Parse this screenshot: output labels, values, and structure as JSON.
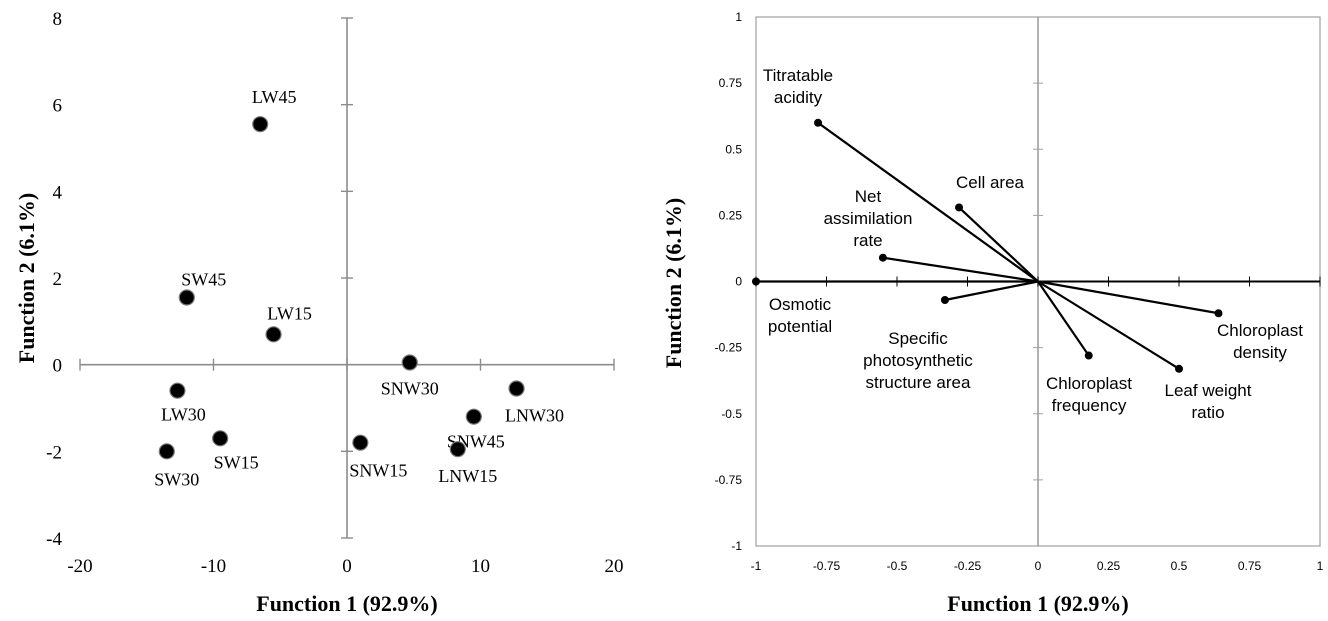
{
  "chart_data": [
    {
      "type": "scatter",
      "xlabel": "Function 1 (92.9%)",
      "ylabel": "Function 2 (6.1%)",
      "xlim": [
        -20,
        20
      ],
      "ylim": [
        -4,
        8
      ],
      "xticks": [
        "-20",
        "-10",
        "0",
        "10",
        "20"
      ],
      "yticks": [
        "-4",
        "-2",
        "0",
        "2",
        "4",
        "6",
        "8"
      ],
      "grid": false,
      "points": [
        {
          "label": "LW45",
          "x": -6.5,
          "y": 5.55
        },
        {
          "label": "SW45",
          "x": -12.0,
          "y": 1.55
        },
        {
          "label": "LW15",
          "x": -5.5,
          "y": 0.7
        },
        {
          "label": "LW30",
          "x": -12.7,
          "y": -0.6
        },
        {
          "label": "SW30",
          "x": -13.5,
          "y": -2.0
        },
        {
          "label": "SW15",
          "x": -9.5,
          "y": -1.7
        },
        {
          "label": "SNW15",
          "x": 1.0,
          "y": -1.8
        },
        {
          "label": "SNW30",
          "x": 4.7,
          "y": 0.05
        },
        {
          "label": "SNW45",
          "x": 9.5,
          "y": -1.2
        },
        {
          "label": "LNW15",
          "x": 8.3,
          "y": -1.95
        },
        {
          "label": "LNW30",
          "x": 12.7,
          "y": -0.55
        }
      ]
    },
    {
      "type": "vector",
      "xlabel": "Function 1 (92.9%)",
      "ylabel": "Function 2 (6.1%)",
      "xlim": [
        -1,
        1
      ],
      "ylim": [
        -1,
        1
      ],
      "xticks": [
        "-1",
        "-0.75",
        "-0.5",
        "-0.25",
        "0",
        "0.25",
        "0.5",
        "0.75",
        "1"
      ],
      "yticks": [
        "-1",
        "-0.75",
        "-0.5",
        "-0.25",
        "0",
        "0.25",
        "0.5",
        "0.75",
        "1"
      ],
      "grid": false,
      "vectors": [
        {
          "label": [
            "Titratable",
            "acidity"
          ],
          "x": -0.78,
          "y": 0.6
        },
        {
          "label": [
            "Cell area"
          ],
          "x": -0.28,
          "y": 0.28
        },
        {
          "label": [
            "Net",
            "assimilation",
            "rate"
          ],
          "x": -0.55,
          "y": 0.09
        },
        {
          "label": [
            "Osmotic",
            "potential"
          ],
          "x": -1.0,
          "y": 0.0
        },
        {
          "label": [
            "Specific",
            "photosynthetic",
            "structure area"
          ],
          "x": -0.33,
          "y": -0.07
        },
        {
          "label": [
            "Chloroplast",
            "frequency"
          ],
          "x": 0.18,
          "y": -0.28
        },
        {
          "label": [
            "Leaf weight",
            "ratio"
          ],
          "x": 0.5,
          "y": -0.33
        },
        {
          "label": [
            "Chloroplast",
            "density"
          ],
          "x": 0.64,
          "y": -0.12
        }
      ]
    }
  ]
}
